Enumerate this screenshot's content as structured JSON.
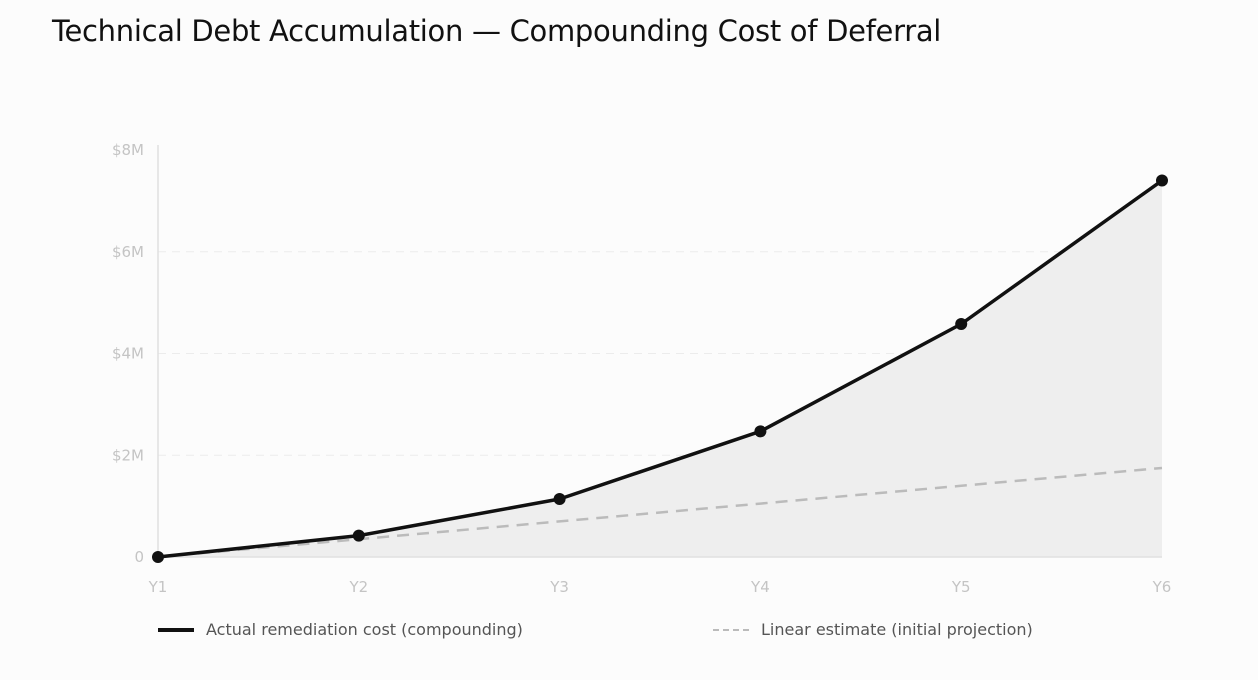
{
  "title": "Technical Debt Accumulation — Compounding Cost of Deferral",
  "chart_data": {
    "type": "line",
    "title": "Technical Debt Accumulation — Compounding Cost of Deferral",
    "categories": [
      "Y1",
      "Y2",
      "Y3",
      "Y4",
      "Y5",
      "Y6"
    ],
    "yticks": [
      {
        "v": 0,
        "label": "0"
      },
      {
        "v": 2,
        "label": "$2M"
      },
      {
        "v": 4,
        "label": "$4M"
      },
      {
        "v": 6,
        "label": "$6M"
      },
      {
        "v": 8,
        "label": "$8M"
      }
    ],
    "ylim": [
      0,
      8
    ],
    "yunit": "$M",
    "grid": "horizontal dashed",
    "legend_position": "bottom",
    "series": [
      {
        "name": "Actual remediation cost (compounding)",
        "values": [
          0,
          0.42,
          1.14,
          2.47,
          4.58,
          7.4
        ],
        "color": "#111111",
        "style": "solid",
        "markers": true,
        "area_fill": "#eeeeee"
      },
      {
        "name": "Linear estimate (initial projection)",
        "values": [
          0,
          0.35,
          0.7,
          1.05,
          1.4,
          1.75
        ],
        "color": "#bbbbbb",
        "style": "dashed",
        "markers": false
      }
    ]
  }
}
